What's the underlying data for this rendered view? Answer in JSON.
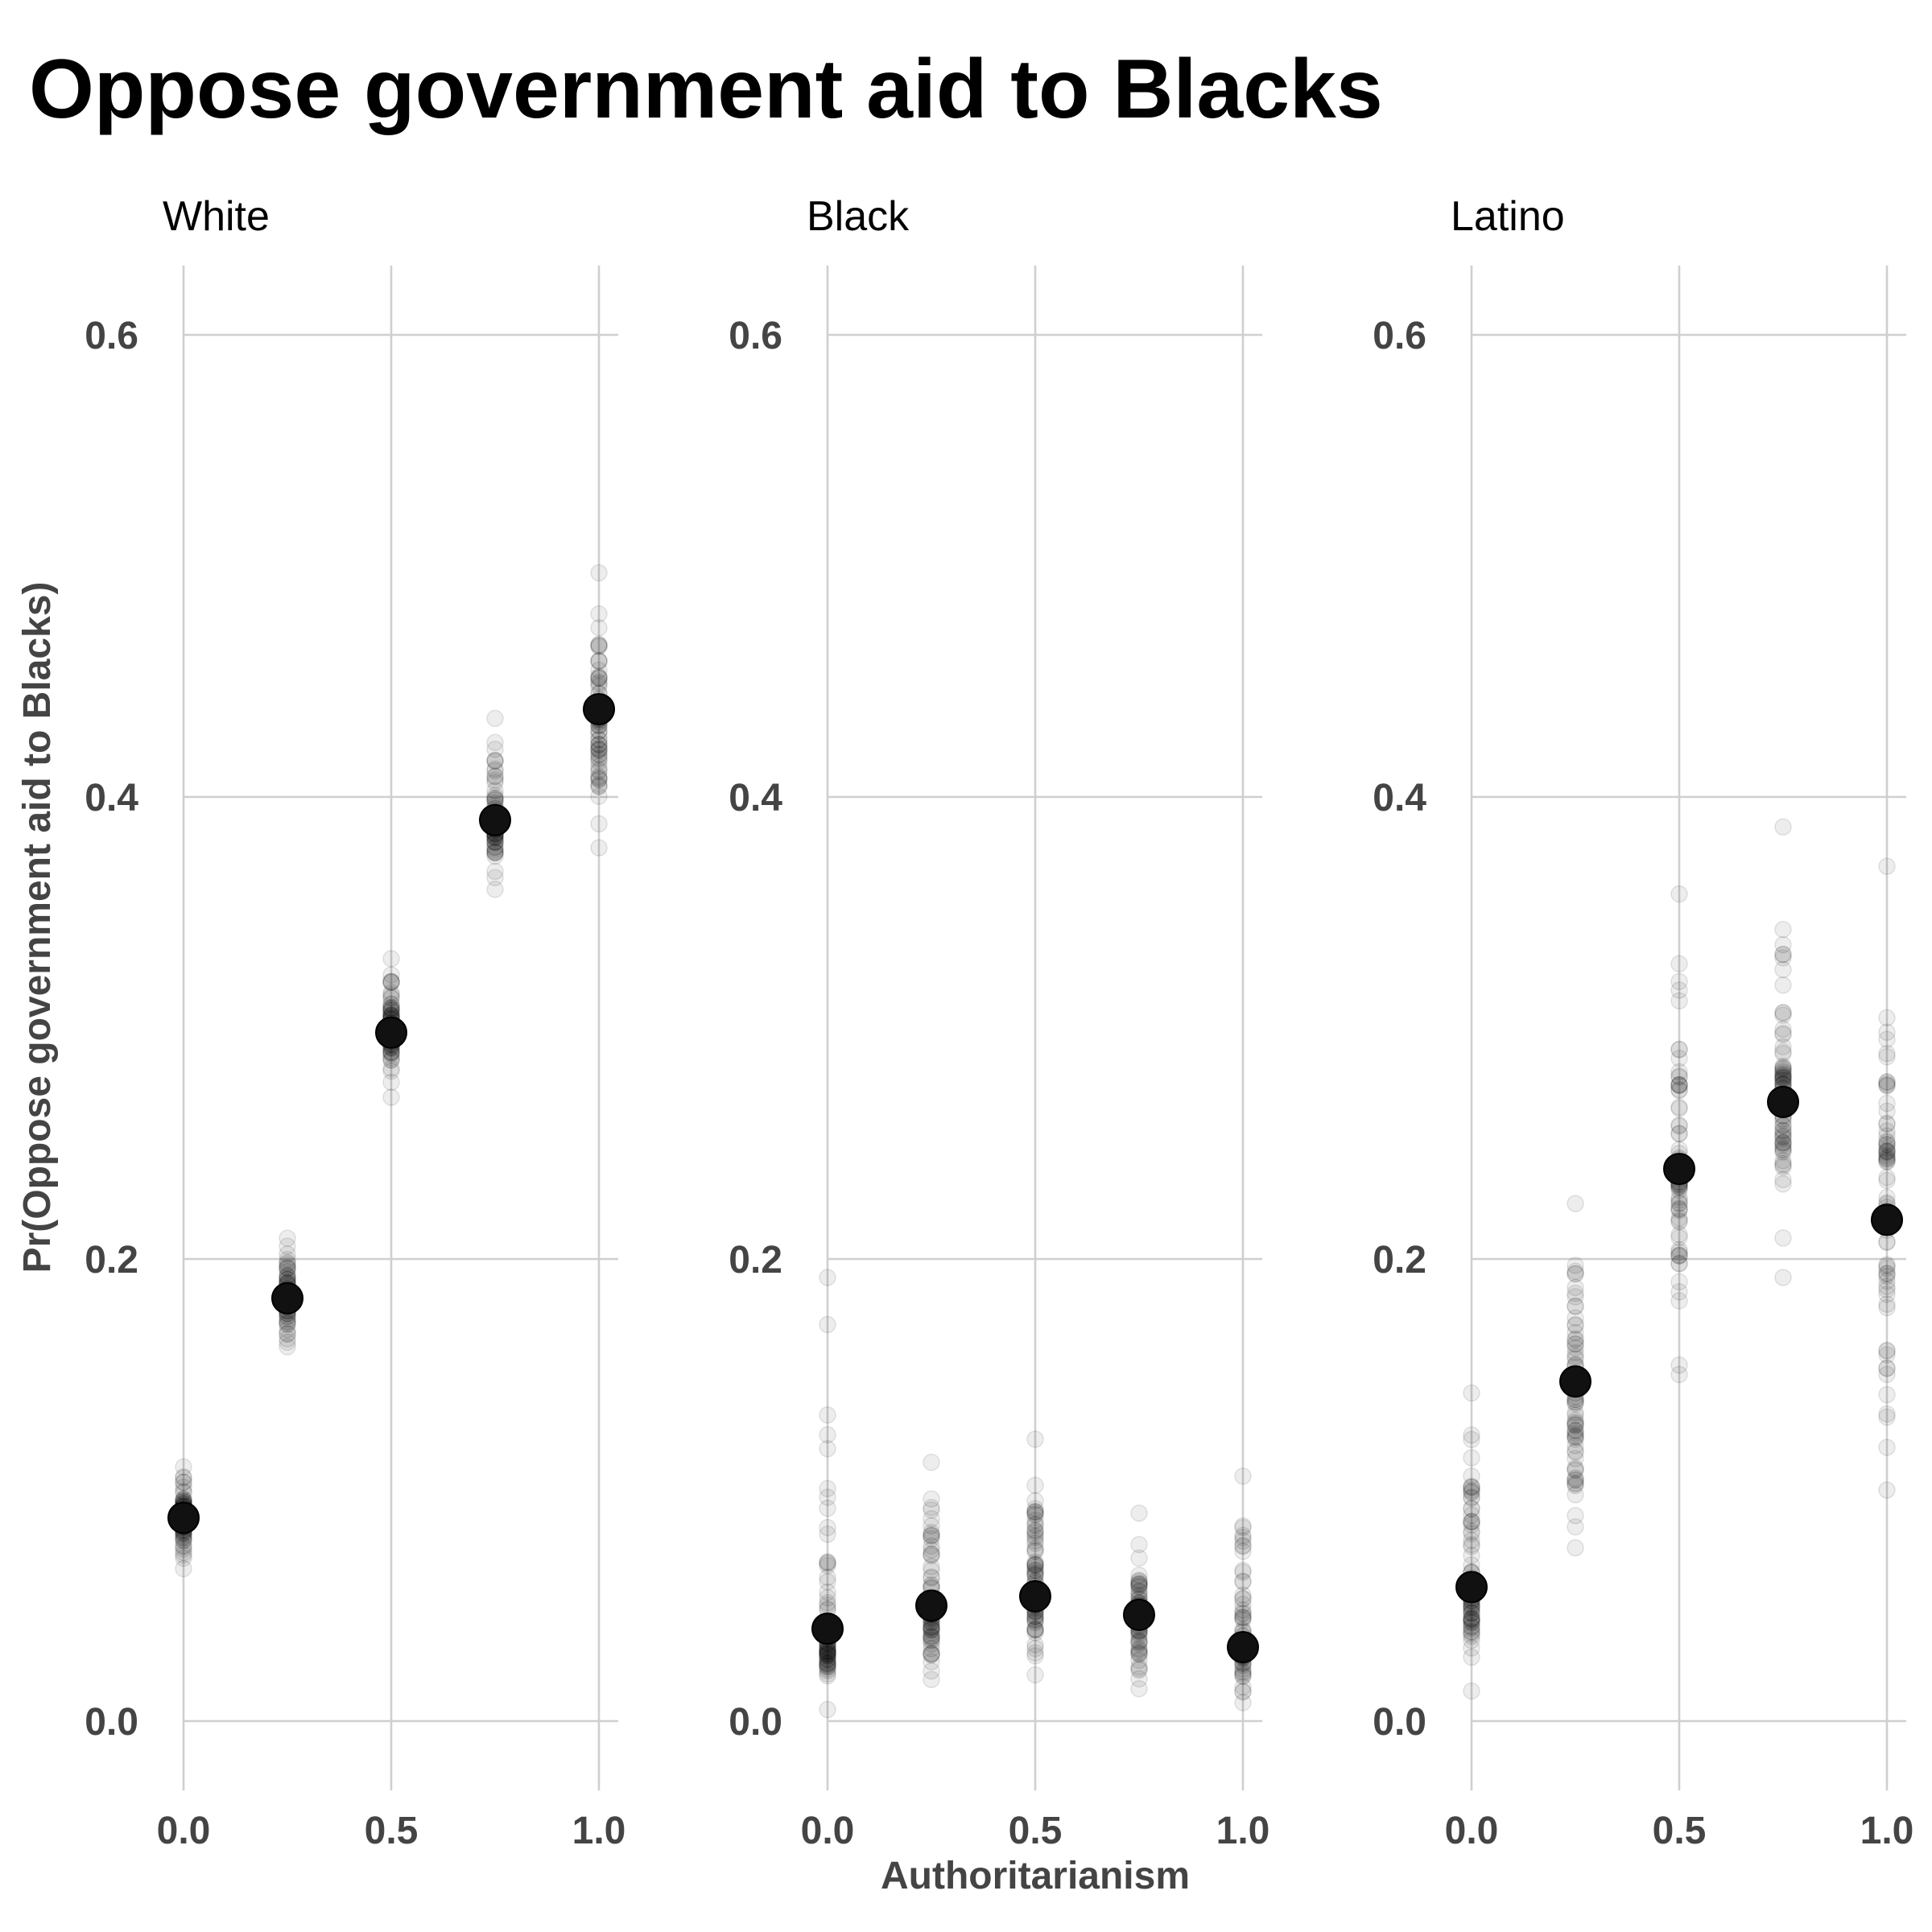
{
  "chart_data": {
    "type": "scatter",
    "title": "Oppose government aid to Blacks",
    "xlabel": "Authoritarianism",
    "ylabel": "Pr(Oppose government aid to Blacks)",
    "xlim": [
      -0.05,
      1.05
    ],
    "ylim": [
      -0.03,
      0.63
    ],
    "xticks": [
      0.0,
      0.5,
      1.0
    ],
    "xtick_labels": [
      "0.0",
      "0.5",
      "1.0"
    ],
    "yticks": [
      0.0,
      0.2,
      0.4,
      0.6
    ],
    "ytick_labels": [
      "0.0",
      "0.2",
      "0.4",
      "0.6"
    ],
    "x": [
      0.0,
      0.25,
      0.5,
      0.75,
      1.0
    ],
    "grid": true,
    "point_color": "#000000",
    "panels": [
      {
        "name": "White",
        "means": [
          0.088,
          0.183,
          0.298,
          0.39,
          0.438
        ],
        "ranges": [
          [
            0.066,
            0.11
          ],
          [
            0.162,
            0.209
          ],
          [
            0.27,
            0.33
          ],
          [
            0.36,
            0.434
          ],
          [
            0.378,
            0.497
          ]
        ]
      },
      {
        "name": "Black",
        "means": [
          0.04,
          0.05,
          0.054,
          0.046,
          0.032
        ],
        "ranges": [
          [
            0.005,
            0.192
          ],
          [
            0.018,
            0.112
          ],
          [
            0.02,
            0.122
          ],
          [
            0.014,
            0.09
          ],
          [
            0.008,
            0.106
          ]
        ]
      },
      {
        "name": "Latino",
        "means": [
          0.058,
          0.147,
          0.239,
          0.268,
          0.217
        ],
        "ranges": [
          [
            0.013,
            0.142
          ],
          [
            0.075,
            0.224
          ],
          [
            0.15,
            0.358
          ],
          [
            0.192,
            0.387
          ],
          [
            0.1,
            0.37
          ]
        ]
      }
    ]
  }
}
